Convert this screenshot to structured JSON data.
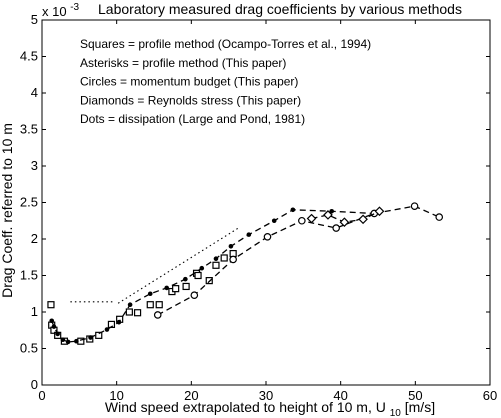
{
  "chart_data": {
    "type": "scatter",
    "title": "Laboratory measured drag coefficients by various methods",
    "xlabel": "Wind speed extrapolated to height of 10 m, U",
    "xlabel_sub": "10",
    "xlabel_unit": " [m/s]",
    "ylabel": "Drag Coeff. referred to 10 m",
    "y_scale_label": "x 10",
    "y_scale_exp": "-3",
    "xlim": [
      0,
      60
    ],
    "ylim": [
      0,
      5
    ],
    "xticks": [
      0,
      10,
      20,
      30,
      40,
      50,
      60
    ],
    "yticks": [
      0,
      0.5,
      1,
      1.5,
      2,
      2.5,
      3,
      3.5,
      4,
      4.5,
      5
    ],
    "xtick_labels": [
      "0",
      "10",
      "20",
      "30",
      "40",
      "50",
      "60"
    ],
    "ytick_labels": [
      "0",
      "0.5",
      "1",
      "1.5",
      "2",
      "2.5",
      "3",
      "3.5",
      "4",
      "4.5",
      "5"
    ],
    "grid": false,
    "annotations": [
      "Squares    = profile method  (Ocampo-Torres et al., 1994)",
      "Asterisks  = profile method  (This paper)",
      "Circles     = momentum budget  (This paper)",
      "Diamonds = Reynolds stress  (This paper)",
      "Dots       = dissipation      (Large and Pond, 1981)"
    ],
    "series": [
      {
        "name": "Squares",
        "marker": "square",
        "line": "none",
        "points": [
          [
            1.2,
            1.1
          ],
          [
            1.3,
            0.82
          ],
          [
            1.6,
            0.75
          ],
          [
            2.1,
            0.68
          ],
          [
            3,
            0.6
          ],
          [
            5.2,
            0.6
          ],
          [
            6.4,
            0.63
          ],
          [
            7.6,
            0.68
          ],
          [
            9.3,
            0.83
          ],
          [
            10.4,
            0.9
          ],
          [
            11.7,
            1.0
          ],
          [
            12.8,
            0.99
          ],
          [
            14.5,
            1.1
          ],
          [
            15.7,
            1.1
          ],
          [
            17.4,
            1.28
          ],
          [
            17.9,
            1.32
          ],
          [
            19.3,
            1.35
          ],
          [
            20.7,
            1.53
          ],
          [
            20.9,
            1.5
          ],
          [
            22.4,
            1.43
          ],
          [
            23.3,
            1.64
          ],
          [
            24.4,
            1.74
          ],
          [
            25.6,
            1.8
          ]
        ]
      },
      {
        "name": "Asterisks",
        "marker": "asterisk",
        "line": "dashed",
        "points": [
          [
            1.3,
            0.88
          ],
          [
            1.6,
            0.8
          ],
          [
            2.1,
            0.7
          ],
          [
            2.8,
            0.62
          ],
          [
            3.5,
            0.59
          ],
          [
            4.6,
            0.6
          ],
          [
            6.5,
            0.65
          ],
          [
            8.7,
            0.76
          ],
          [
            10.3,
            0.86
          ],
          [
            11.8,
            1.1
          ],
          [
            14.5,
            1.25
          ],
          [
            16.7,
            1.33
          ],
          [
            19.2,
            1.45
          ],
          [
            21.4,
            1.6
          ],
          [
            23.3,
            1.73
          ],
          [
            25.3,
            1.9
          ],
          [
            27.7,
            2.06
          ],
          [
            31.1,
            2.25
          ],
          [
            33.6,
            2.4
          ],
          [
            38.8,
            2.38
          ],
          [
            44.4,
            2.35
          ]
        ]
      },
      {
        "name": "Circles",
        "marker": "circle",
        "line": "dashed",
        "points": [
          [
            15.5,
            0.96
          ],
          [
            20.4,
            1.23
          ],
          [
            25.6,
            1.72
          ],
          [
            30.2,
            2.03
          ],
          [
            34.8,
            2.25
          ],
          [
            39.4,
            2.15
          ],
          [
            44.5,
            2.35
          ],
          [
            49.9,
            2.45
          ],
          [
            53.2,
            2.3
          ]
        ]
      },
      {
        "name": "Diamonds",
        "marker": "diamond",
        "line": "dashed",
        "points": [
          [
            36.1,
            2.28
          ],
          [
            38.3,
            2.33
          ],
          [
            40.5,
            2.23
          ],
          [
            43.0,
            2.27
          ],
          [
            45.2,
            2.38
          ]
        ]
      },
      {
        "name": "Dots",
        "marker": "none",
        "line": "dotted",
        "segments": [
          [
            [
              3.8,
              1.14
            ],
            [
              9.5,
              1.14
            ]
          ],
          [
            [
              10.2,
              1.12
            ],
            [
              26.3,
              2.15
            ]
          ]
        ]
      }
    ]
  }
}
